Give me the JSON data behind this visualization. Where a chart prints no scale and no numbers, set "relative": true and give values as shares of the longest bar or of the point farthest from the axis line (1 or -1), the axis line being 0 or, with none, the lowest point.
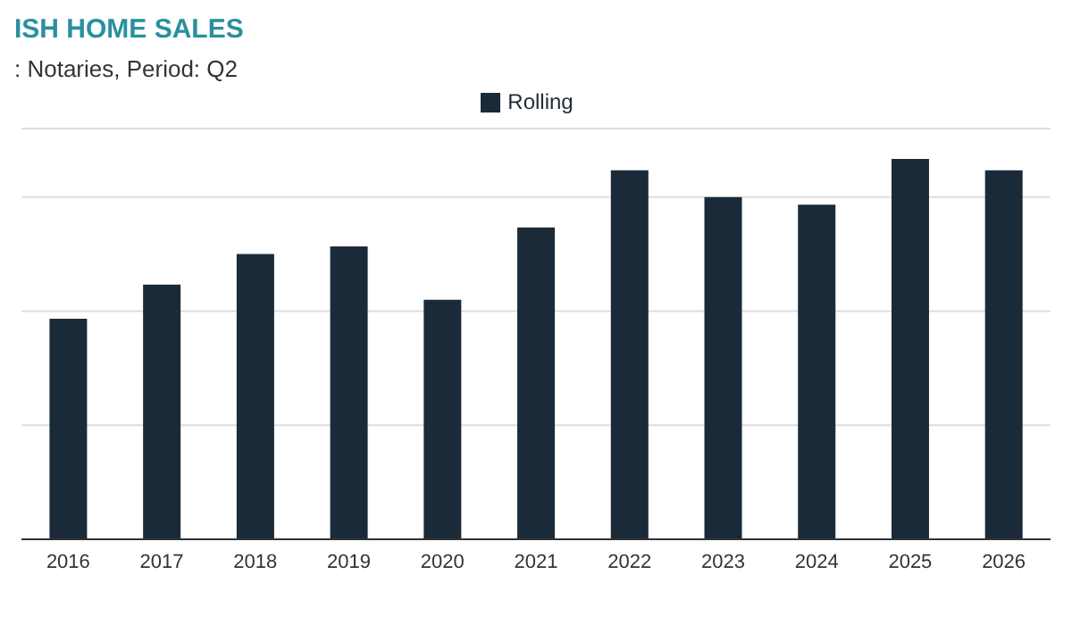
{
  "chart_data": {
    "type": "bar",
    "title": "ISH HOME SALES",
    "subtitle": ": Notaries, Period: Q2",
    "categories": [
      "2016",
      "2017",
      "2018",
      "2019",
      "2020",
      "2021",
      "2022",
      "2023",
      "2024",
      "2025",
      "2026"
    ],
    "series": [
      {
        "name": "Rolling",
        "color": "#1b2a38",
        "values": [
          0.58,
          0.67,
          0.75,
          0.77,
          0.63,
          0.82,
          0.97,
          0.9,
          0.88,
          1,
          0.97
        ]
      }
    ],
    "relative": true,
    "grid": "y",
    "legend": "top"
  }
}
